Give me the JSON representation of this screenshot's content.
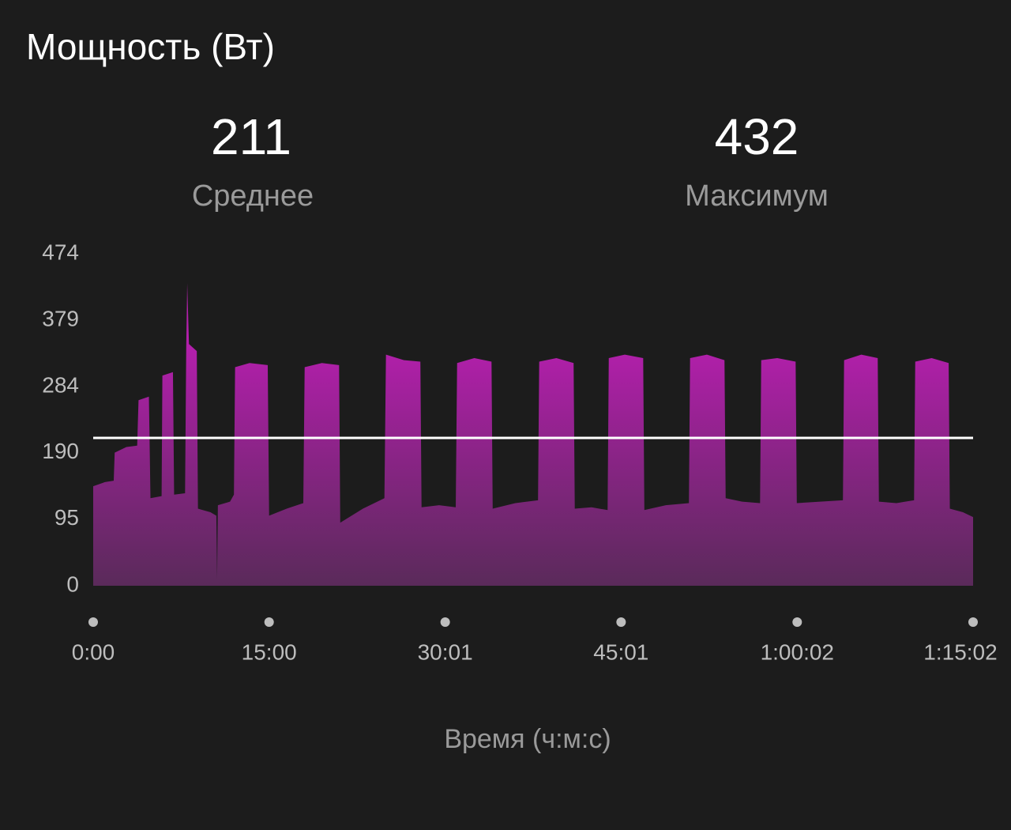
{
  "chart_data": {
    "type": "area",
    "title": "Мощность (Вт)",
    "stats": [
      {
        "value": 211,
        "label": "Среднее"
      },
      {
        "value": 432,
        "label": "Максимум"
      }
    ],
    "x_label": "Время (ч:м:с)",
    "x": [
      0,
      60,
      105,
      110,
      170,
      225,
      232,
      285,
      293,
      350,
      354,
      408,
      414,
      470,
      476,
      481,
      490,
      530,
      536,
      600,
      630,
      634,
      638,
      700,
      720,
      726,
      800,
      893,
      900,
      990,
      1075,
      1082,
      1170,
      1258,
      1264,
      1380,
      1490,
      1498,
      1590,
      1674,
      1680,
      1770,
      1855,
      1862,
      1950,
      2038,
      2044,
      2160,
      2276,
      2282,
      2370,
      2458,
      2464,
      2550,
      2632,
      2638,
      2720,
      2814,
      2820,
      2930,
      3048,
      3054,
      3140,
      3230,
      3236,
      3320,
      3412,
      3418,
      3500,
      3594,
      3600,
      3720,
      3836,
      3842,
      3930,
      4014,
      4020,
      4110,
      4200,
      4206,
      4290,
      4377,
      4383,
      4450,
      4502
    ],
    "values": [
      142,
      148,
      150,
      190,
      198,
      200,
      265,
      270,
      125,
      128,
      300,
      305,
      130,
      132,
      340,
      432,
      345,
      335,
      110,
      105,
      100,
      10,
      115,
      120,
      130,
      312,
      318,
      315,
      100,
      110,
      118,
      312,
      318,
      315,
      90,
      110,
      125,
      330,
      322,
      320,
      112,
      115,
      112,
      318,
      325,
      320,
      110,
      118,
      122,
      320,
      325,
      318,
      110,
      112,
      108,
      325,
      330,
      325,
      108,
      115,
      118,
      325,
      330,
      322,
      125,
      120,
      118,
      322,
      325,
      320,
      118,
      120,
      122,
      322,
      330,
      325,
      120,
      118,
      122,
      320,
      325,
      318,
      110,
      105,
      98
    ],
    "colors": [
      "#b21fab",
      "#5a2a5a"
    ],
    "mean_line_color": "#ffffff",
    "xlim": [
      0,
      4502
    ],
    "xticks": [
      {
        "value": 0,
        "label": "0:00"
      },
      {
        "value": 900,
        "label": "15:00"
      },
      {
        "value": 1801,
        "label": "30:01"
      },
      {
        "value": 2701,
        "label": "45:01"
      },
      {
        "value": 3602,
        "label": "1:00:02"
      },
      {
        "value": 4502,
        "label": "1:15:02"
      }
    ],
    "ylim": [
      0,
      474
    ],
    "yticks": [
      0,
      95,
      190,
      284,
      379,
      474
    ]
  }
}
